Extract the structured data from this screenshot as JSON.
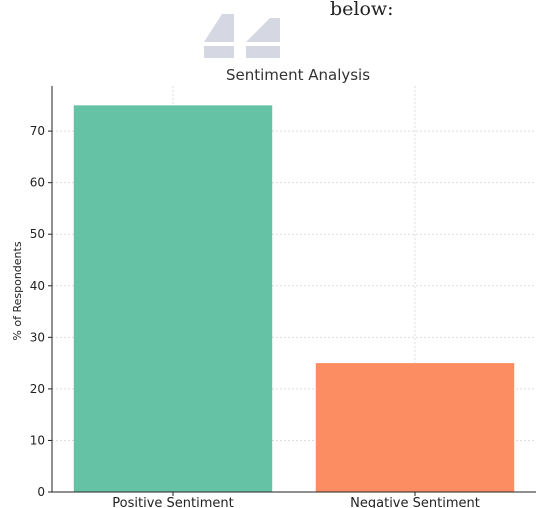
{
  "page": {
    "top_text": "below:",
    "logo_icon": "sailboat-logo-icon"
  },
  "chart_data": {
    "type": "bar",
    "title": "Sentiment Analysis",
    "xlabel": "",
    "ylabel": "% of Respondents",
    "categories": [
      "Positive Sentiment",
      "Negative Sentiment"
    ],
    "values": [
      75,
      25
    ],
    "colors": [
      "#66c2a5",
      "#fc8d62"
    ],
    "ylim": [
      0,
      78.75
    ],
    "yticks": [
      0,
      10,
      20,
      30,
      40,
      50,
      60,
      70
    ],
    "grid": true
  }
}
